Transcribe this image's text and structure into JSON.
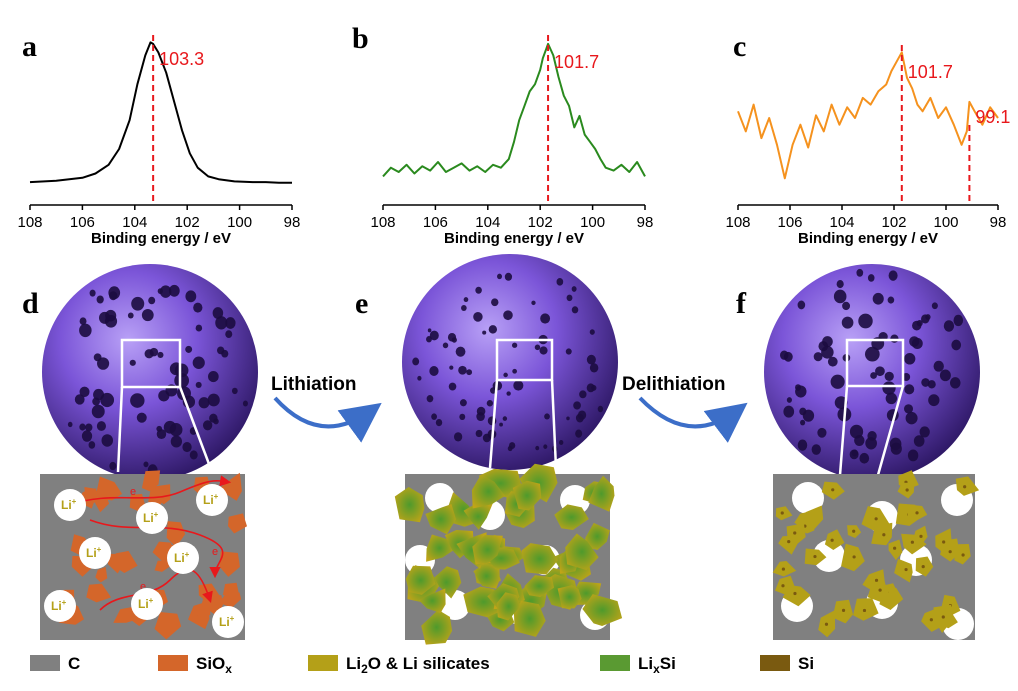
{
  "panel_labels": {
    "a": "a",
    "b": "b",
    "c": "c",
    "d": "d",
    "e": "e",
    "f": "f"
  },
  "chart_data": [
    {
      "type": "line",
      "title": "",
      "xlabel": "Binding energy / eV",
      "ylabel": "",
      "xlim": [
        108,
        98
      ],
      "x_ticks": [
        "108",
        "106",
        "104",
        "102",
        "100",
        "98"
      ],
      "series": [
        {
          "color": "#000000",
          "x": [
            108,
            107,
            106,
            105.5,
            105,
            104.6,
            104.2,
            103.9,
            103.6,
            103.4,
            103.3,
            103.1,
            102.8,
            102.5,
            102.2,
            101.9,
            101.6,
            101.2,
            100.8,
            100.2,
            99.5,
            99,
            98.5,
            98
          ],
          "y": [
            2,
            3,
            5,
            8,
            14,
            25,
            45,
            70,
            90,
            99,
            98,
            92,
            78,
            58,
            38,
            22,
            12,
            6,
            4,
            2.5,
            2,
            2,
            1.5,
            1.5
          ]
        }
      ],
      "annotations": [
        {
          "x": 103.3,
          "label": "103.3",
          "color": "#e8181c"
        }
      ]
    },
    {
      "type": "line",
      "title": "",
      "xlabel": "Binding energy / eV",
      "ylabel": "",
      "xlim": [
        108,
        98
      ],
      "x_ticks": [
        "108",
        "106",
        "104",
        "102",
        "100",
        "98"
      ],
      "series": [
        {
          "color": "#2a8a1e",
          "x": [
            108,
            107.7,
            107.4,
            107.1,
            106.8,
            106.5,
            106.2,
            105.9,
            105.6,
            105.3,
            105,
            104.7,
            104.4,
            104.1,
            103.8,
            103.5,
            103.2,
            103,
            102.8,
            102.6,
            102.4,
            102.2,
            102,
            101.9,
            101.7,
            101.5,
            101.3,
            101.1,
            100.9,
            100.7,
            100.5,
            100.3,
            100.1,
            99.9,
            99.7,
            99.5,
            99.2,
            98.9,
            98.6,
            98.3,
            98
          ],
          "y": [
            6,
            12,
            9,
            14,
            8,
            13,
            10,
            16,
            9,
            12,
            15,
            10,
            13,
            9,
            14,
            12,
            18,
            30,
            45,
            55,
            65,
            70,
            80,
            88,
            98,
            90,
            75,
            62,
            55,
            40,
            48,
            35,
            30,
            25,
            18,
            12,
            10,
            14,
            9,
            16,
            6
          ]
        }
      ],
      "annotations": [
        {
          "x": 101.7,
          "label": "101.7",
          "color": "#e8181c"
        }
      ]
    },
    {
      "type": "line",
      "title": "",
      "xlabel": "Binding energy / eV",
      "ylabel": "",
      "xlim": [
        108,
        98
      ],
      "x_ticks": [
        "108",
        "106",
        "104",
        "102",
        "100",
        "98"
      ],
      "series": [
        {
          "color": "#f5921e",
          "x": [
            108,
            107.7,
            107.4,
            107.1,
            106.8,
            106.5,
            106.2,
            105.9,
            105.6,
            105.3,
            105,
            104.7,
            104.4,
            104.1,
            103.8,
            103.5,
            103.2,
            102.9,
            102.6,
            102.3,
            102.1,
            101.9,
            101.7,
            101.5,
            101.3,
            101.1,
            100.9,
            100.6,
            100.3,
            100,
            99.7,
            99.4,
            99.2,
            99.1,
            98.9,
            98.6,
            98.3,
            98
          ],
          "y": [
            55,
            40,
            60,
            35,
            50,
            30,
            5,
            30,
            45,
            28,
            52,
            40,
            60,
            45,
            58,
            50,
            65,
            60,
            70,
            75,
            85,
            92,
            99,
            80,
            72,
            60,
            55,
            65,
            50,
            58,
            45,
            30,
            40,
            62,
            55,
            45,
            58,
            50
          ]
        }
      ],
      "annotations": [
        {
          "x": 101.7,
          "label": "101.7",
          "color": "#e8181c"
        },
        {
          "x": 99.1,
          "label": "99.1",
          "color": "#e8181c"
        }
      ]
    }
  ],
  "steps": {
    "lithiation": "Lithiation",
    "delithiation": "Delithiation"
  },
  "schematic_d": {
    "li_label": "Li",
    "li_sup": "+",
    "electron_label": "e"
  },
  "legend": [
    {
      "name": "legend-c",
      "main": "C",
      "sub": "",
      "rest": "",
      "color": "#808080"
    },
    {
      "name": "legend-siox",
      "main": "SiO",
      "sub": "x",
      "rest": "",
      "color": "#d4662a"
    },
    {
      "name": "legend-li2o",
      "main": "Li",
      "sub": "2",
      "rest": "O & Li silicates",
      "color": "#b4a018"
    },
    {
      "name": "legend-lixsi",
      "main": "Li",
      "sub": "x",
      "rest": "Si",
      "color": "#5a9a32"
    },
    {
      "name": "legend-si",
      "main": "Si",
      "sub": "",
      "rest": "",
      "color": "#7a5a10"
    }
  ],
  "colors": {
    "sphere": "#7b55d8",
    "carbon": "#808080",
    "siox": "#d4662a",
    "silicate": "#b4a018",
    "lixsi": "#5a9a32",
    "si": "#7a5a10",
    "dash": "#e8181c",
    "arrow": "#3c6ec8"
  }
}
